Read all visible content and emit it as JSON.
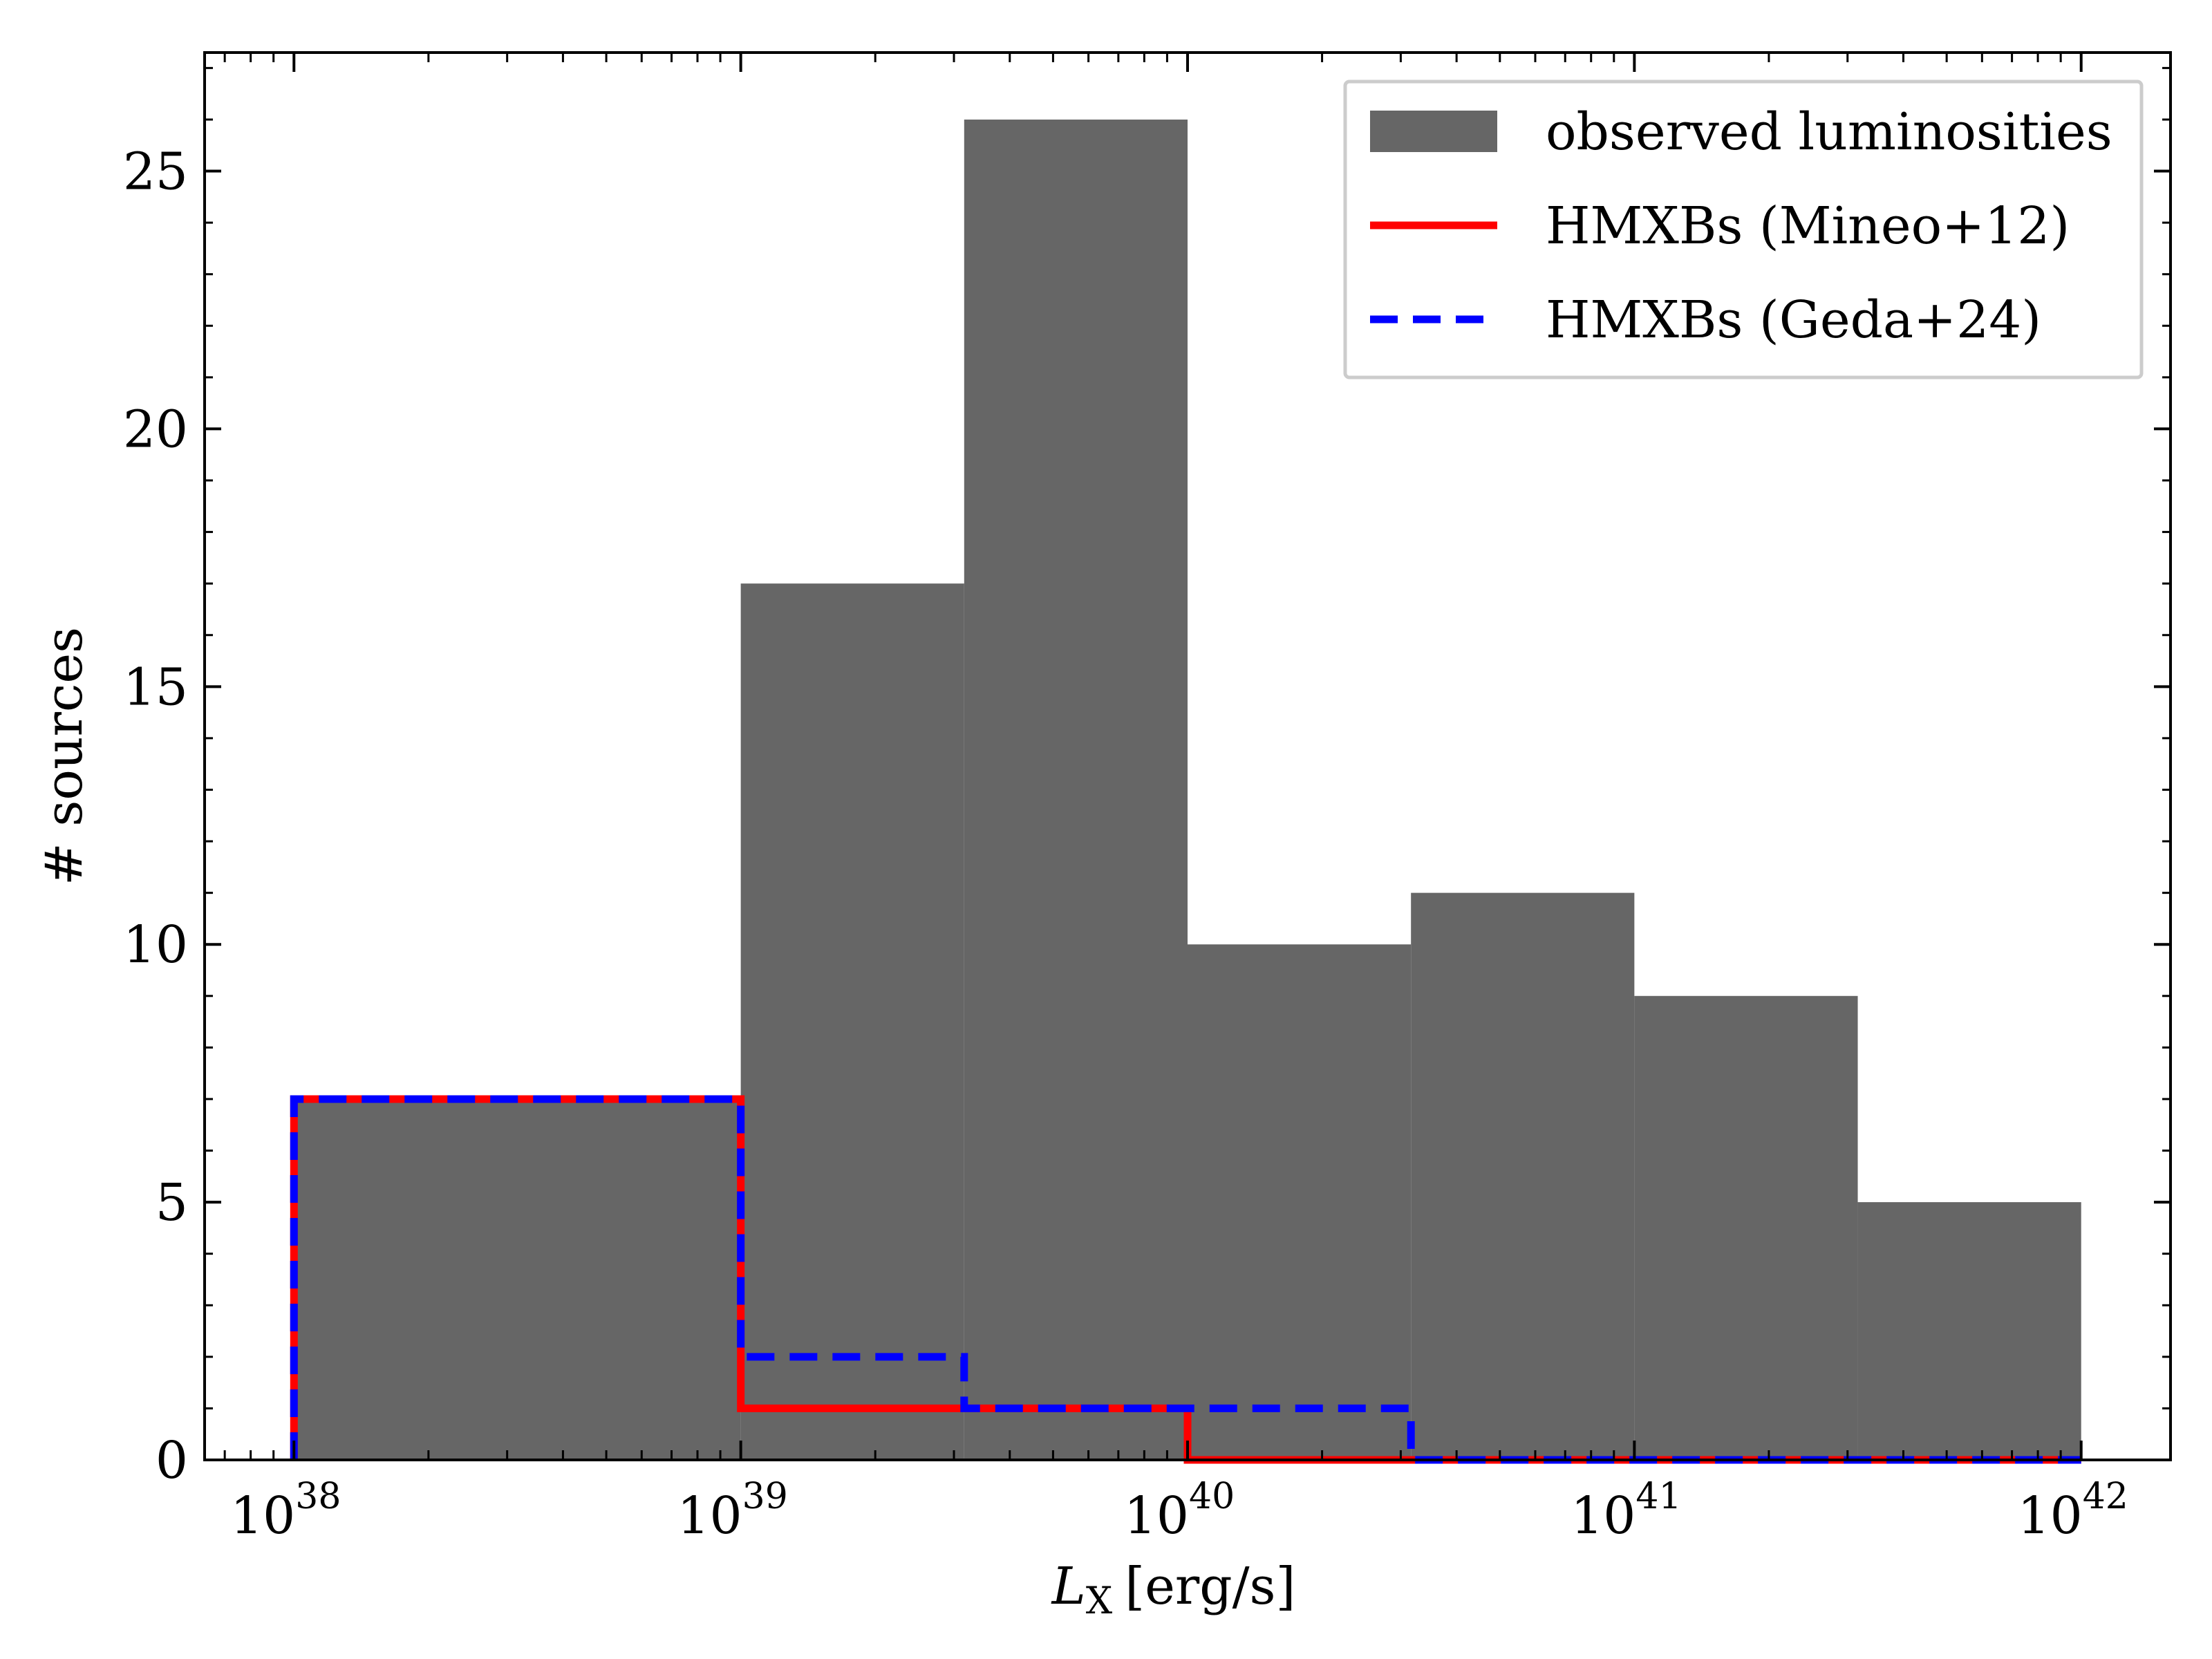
{
  "chart_data": {
    "type": "histogram",
    "title": "",
    "xlabel": {
      "symbol": "L",
      "subscript": "X",
      "unit": "[erg/s]"
    },
    "ylabel": "# sources",
    "xscale": "log",
    "xlim_exponent": [
      37.8,
      42.2
    ],
    "ylim": [
      0,
      27.3
    ],
    "x_ticks": [
      {
        "base": "10",
        "exp": "38",
        "value": 38
      },
      {
        "base": "10",
        "exp": "39",
        "value": 39
      },
      {
        "base": "10",
        "exp": "40",
        "value": 40
      },
      {
        "base": "10",
        "exp": "41",
        "value": 41
      },
      {
        "base": "10",
        "exp": "42",
        "value": 42
      }
    ],
    "y_ticks": [
      {
        "label": "0",
        "value": 0
      },
      {
        "label": "5",
        "value": 5
      },
      {
        "label": "10",
        "value": 10
      },
      {
        "label": "15",
        "value": 15
      },
      {
        "label": "20",
        "value": 20
      },
      {
        "label": "25",
        "value": 25
      }
    ],
    "bin_edges_log10": [
      38.0,
      39.0,
      39.5,
      40.0,
      40.5,
      41.0,
      41.5,
      42.0
    ],
    "series": [
      {
        "name": "observed luminosities",
        "style": "filled",
        "color": "#666666",
        "values": [
          7,
          17,
          26,
          10,
          11,
          9,
          5
        ]
      },
      {
        "name": "HMXBs (Mineo+12)",
        "style": "step-solid",
        "color": "#ff0000",
        "values": [
          7,
          1,
          1,
          0,
          0,
          0,
          0
        ]
      },
      {
        "name": "HMXBs (Geda+24)",
        "style": "step-dashed",
        "color": "#0000ff",
        "values": [
          7,
          2,
          1,
          1,
          0,
          0,
          0
        ]
      }
    ],
    "legend_position": "top-right",
    "grid": false
  }
}
